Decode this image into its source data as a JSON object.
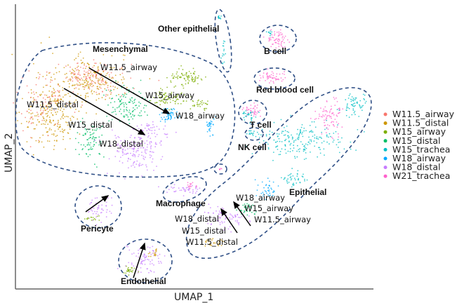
{
  "chart_data": {
    "type": "scatter",
    "xlabel": "UMAP_1",
    "ylabel": "UMAP_2",
    "grid": false,
    "legend_position": "right",
    "legend": [
      {
        "name": "W11.5_airway",
        "color": "#f8766d"
      },
      {
        "name": "W11.5_distal",
        "color": "#cd9600"
      },
      {
        "name": "W15_airway",
        "color": "#7cae00"
      },
      {
        "name": "W15_distal",
        "color": "#00be67"
      },
      {
        "name": "W15_trachea",
        "color": "#00bfc4"
      },
      {
        "name": "W18_airway",
        "color": "#00a9ff"
      },
      {
        "name": "W18_distal",
        "color": "#c77cff"
      },
      {
        "name": "W21_trachea",
        "color": "#ff61cc"
      }
    ],
    "cluster_labels": [
      "Other epithelial",
      "Mesenchymal",
      "B cell",
      "Red blood cell",
      "T cell",
      "NK cell",
      "Epithelial",
      "Macrophage",
      "Pericyte",
      "Endothelial"
    ],
    "annotations": {
      "mesenchymal": [
        "W11.5_airway",
        "W15_airway",
        "W18_airway",
        "W11.5_distal",
        "W15_distal",
        "W18_distal"
      ],
      "epithelial": [
        "W18_airway",
        "W15_airway",
        "W11.5_airway",
        "W18_distal",
        "W15_distal",
        "W11.5_distal"
      ]
    },
    "outline_color": "#2f4f86"
  }
}
